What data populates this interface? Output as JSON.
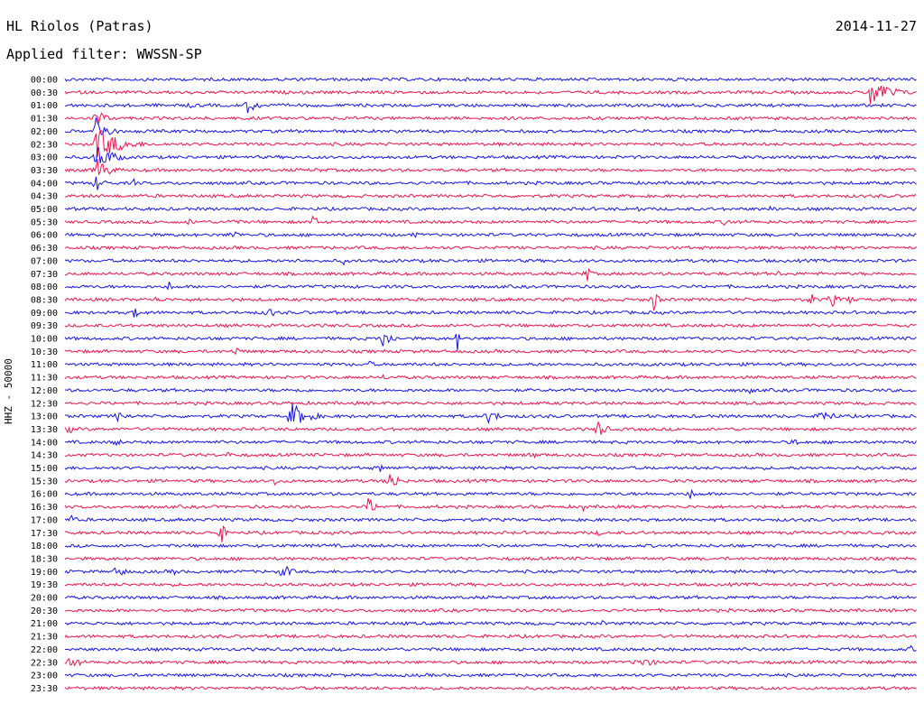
{
  "header": {
    "station": "HL Riolos (Patras)",
    "date": "2014-11-27",
    "filter_text": "Applied filter: WWSSN-SP",
    "channel_label": "HHZ - 50000"
  },
  "colors": {
    "blue": "#1414e6",
    "red": "#f0144b"
  },
  "chart_data": {
    "type": "helicorder",
    "title": "HL Riolos (Patras)",
    "subtitle": "Applied filter: WWSSN-SP",
    "ylabel": "HHZ - 50000",
    "trace_labels": [
      "00:00",
      "00:30",
      "01:00",
      "01:30",
      "02:00",
      "02:30",
      "03:00",
      "03:30",
      "04:00",
      "04:30",
      "05:00",
      "05:30",
      "06:00",
      "06:30",
      "07:00",
      "07:30",
      "08:00",
      "08:30",
      "09:00",
      "09:30",
      "10:00",
      "10:30",
      "11:00",
      "11:30",
      "12:00",
      "12:30",
      "13:00",
      "13:30",
      "14:00",
      "14:30",
      "15:00",
      "15:30",
      "16:00",
      "16:30",
      "17:00",
      "17:30",
      "18:00",
      "18:30",
      "19:00",
      "19:30",
      "20:00",
      "20:30",
      "21:00",
      "21:30",
      "22:00",
      "22:30",
      "23:00",
      "23:30"
    ],
    "trace_colors_cycle": [
      "blue",
      "red"
    ],
    "window_minutes": 30,
    "events": [
      {
        "trace": 1,
        "t": 0.944,
        "amp": 18,
        "dur": 0.05
      },
      {
        "trace": 2,
        "t": 0.145,
        "amp": 5,
        "dur": 0.02
      },
      {
        "trace": 2,
        "t": 0.213,
        "amp": 10,
        "dur": 0.03
      },
      {
        "trace": 3,
        "t": 0.036,
        "amp": 15,
        "dur": 0.02
      },
      {
        "trace": 4,
        "t": 0.036,
        "amp": 18,
        "dur": 0.03
      },
      {
        "trace": 5,
        "t": 0.036,
        "amp": 20,
        "dur": 0.06
      },
      {
        "trace": 6,
        "t": 0.036,
        "amp": 16,
        "dur": 0.04
      },
      {
        "trace": 7,
        "t": 0.036,
        "amp": 16,
        "dur": 0.03
      },
      {
        "trace": 7,
        "t": 0.296,
        "amp": 6,
        "dur": 0.01
      },
      {
        "trace": 7,
        "t": 0.875,
        "amp": 3,
        "dur": 0.02
      },
      {
        "trace": 8,
        "t": 0.036,
        "amp": 10,
        "dur": 0.02
      },
      {
        "trace": 8,
        "t": 0.08,
        "amp": 6,
        "dur": 0.01
      },
      {
        "trace": 10,
        "t": 0.672,
        "amp": 4,
        "dur": 0.02
      },
      {
        "trace": 10,
        "t": 0.825,
        "amp": 5,
        "dur": 0.02
      },
      {
        "trace": 11,
        "t": 0.144,
        "amp": 4,
        "dur": 0.03
      },
      {
        "trace": 11,
        "t": 0.194,
        "amp": 6,
        "dur": 0.02
      },
      {
        "trace": 11,
        "t": 0.29,
        "amp": 8,
        "dur": 0.02
      },
      {
        "trace": 11,
        "t": 0.773,
        "amp": 5,
        "dur": 0.03
      },
      {
        "trace": 12,
        "t": 0.196,
        "amp": 7,
        "dur": 0.02
      },
      {
        "trace": 12,
        "t": 0.408,
        "amp": 4,
        "dur": 0.02
      },
      {
        "trace": 14,
        "t": 0.27,
        "amp": 4,
        "dur": 0.02
      },
      {
        "trace": 14,
        "t": 0.327,
        "amp": 5,
        "dur": 0.01
      },
      {
        "trace": 15,
        "t": 0.611,
        "amp": 14,
        "dur": 0.01
      },
      {
        "trace": 15,
        "t": 0.837,
        "amp": 4,
        "dur": 0.01
      },
      {
        "trace": 16,
        "t": 0.122,
        "amp": 8,
        "dur": 0.01
      },
      {
        "trace": 17,
        "t": 0.108,
        "amp": 8,
        "dur": 0.01
      },
      {
        "trace": 17,
        "t": 0.69,
        "amp": 18,
        "dur": 0.01
      },
      {
        "trace": 17,
        "t": 0.875,
        "amp": 10,
        "dur": 0.01
      },
      {
        "trace": 17,
        "t": 0.898,
        "amp": 10,
        "dur": 0.02
      },
      {
        "trace": 17,
        "t": 0.92,
        "amp": 8,
        "dur": 0.01
      },
      {
        "trace": 18,
        "t": 0.08,
        "amp": 6,
        "dur": 0.03
      },
      {
        "trace": 18,
        "t": 0.237,
        "amp": 8,
        "dur": 0.02
      },
      {
        "trace": 19,
        "t": 0.985,
        "amp": 4,
        "dur": 0.02
      },
      {
        "trace": 20,
        "t": 0.372,
        "amp": 16,
        "dur": 0.02
      },
      {
        "trace": 20,
        "t": 0.46,
        "amp": 16,
        "dur": 0.01
      },
      {
        "trace": 21,
        "t": 0.2,
        "amp": 6,
        "dur": 0.02
      },
      {
        "trace": 22,
        "t": 0.355,
        "amp": 5,
        "dur": 0.02
      },
      {
        "trace": 23,
        "t": 0.372,
        "amp": 4,
        "dur": 0.02
      },
      {
        "trace": 24,
        "t": 0.27,
        "amp": 4,
        "dur": 0.02
      },
      {
        "trace": 24,
        "t": 0.802,
        "amp": 5,
        "dur": 0.02
      },
      {
        "trace": 26,
        "t": 0.06,
        "amp": 7,
        "dur": 0.03
      },
      {
        "trace": 26,
        "t": 0.265,
        "amp": 16,
        "dur": 0.04
      },
      {
        "trace": 26,
        "t": 0.495,
        "amp": 9,
        "dur": 0.03
      },
      {
        "trace": 26,
        "t": 0.888,
        "amp": 9,
        "dur": 0.03
      },
      {
        "trace": 27,
        "t": 0.625,
        "amp": 12,
        "dur": 0.02
      },
      {
        "trace": 27,
        "t": 0.003,
        "amp": 6,
        "dur": 0.02
      },
      {
        "trace": 28,
        "t": 0.06,
        "amp": 8,
        "dur": 0.01
      },
      {
        "trace": 28,
        "t": 0.855,
        "amp": 8,
        "dur": 0.01
      },
      {
        "trace": 29,
        "t": 0.19,
        "amp": 4,
        "dur": 0.02
      },
      {
        "trace": 29,
        "t": 0.545,
        "amp": 4,
        "dur": 0.04
      },
      {
        "trace": 30,
        "t": 0.37,
        "amp": 6,
        "dur": 0.01
      },
      {
        "trace": 31,
        "t": 0.245,
        "amp": 8,
        "dur": 0.01
      },
      {
        "trace": 31,
        "t": 0.38,
        "amp": 16,
        "dur": 0.02
      },
      {
        "trace": 32,
        "t": 0.733,
        "amp": 7,
        "dur": 0.02
      },
      {
        "trace": 33,
        "t": 0.355,
        "amp": 12,
        "dur": 0.02
      },
      {
        "trace": 33,
        "t": 0.608,
        "amp": 6,
        "dur": 0.01
      },
      {
        "trace": 34,
        "t": 0.006,
        "amp": 6,
        "dur": 0.02
      },
      {
        "trace": 35,
        "t": 0.182,
        "amp": 18,
        "dur": 0.01
      },
      {
        "trace": 35,
        "t": 0.625,
        "amp": 6,
        "dur": 0.01
      },
      {
        "trace": 38,
        "t": 0.06,
        "amp": 10,
        "dur": 0.02
      },
      {
        "trace": 38,
        "t": 0.128,
        "amp": 6,
        "dur": 0.01
      },
      {
        "trace": 38,
        "t": 0.255,
        "amp": 11,
        "dur": 0.02
      },
      {
        "trace": 39,
        "t": 0.08,
        "amp": 5,
        "dur": 0.01
      },
      {
        "trace": 42,
        "t": 0.63,
        "amp": 4,
        "dur": 0.01
      },
      {
        "trace": 44,
        "t": 0.992,
        "amp": 6,
        "dur": 0.01
      },
      {
        "trace": 44,
        "t": 0.69,
        "amp": 3,
        "dur": 0.01
      },
      {
        "trace": 45,
        "t": 0.001,
        "amp": 10,
        "dur": 0.03
      },
      {
        "trace": 45,
        "t": 0.67,
        "amp": 6,
        "dur": 0.06
      }
    ]
  }
}
